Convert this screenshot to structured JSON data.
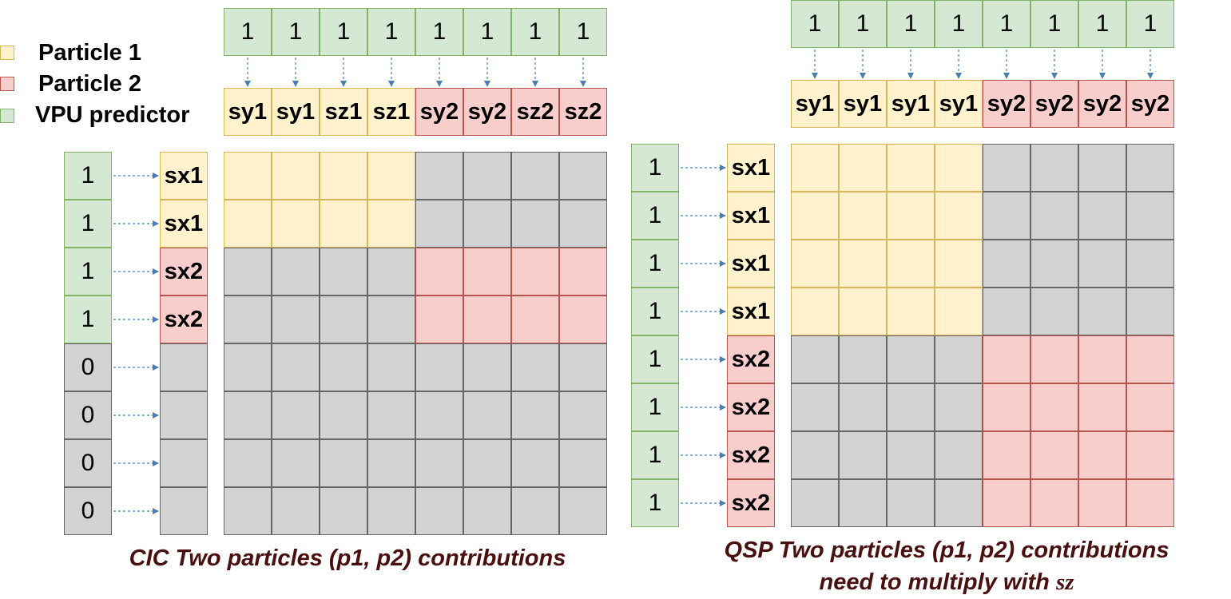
{
  "legend": [
    {
      "label": "Particle 1",
      "color": "#fff2cc",
      "border": "#d6b656"
    },
    {
      "label": "Particle 2",
      "color": "#f8cecc",
      "border": "#b85450"
    },
    {
      "label": "VPU predictor",
      "color": "#d5e8d4",
      "border": "#82b366"
    }
  ],
  "colors": {
    "green": "#d5e8d4",
    "yellow": "#fff2cc",
    "red": "#f8cecc",
    "gray": "#d3d3d3",
    "arrow": "#4a7eb0",
    "caption": "#4a0f0f"
  },
  "cic": {
    "top_predictor": [
      "1",
      "1",
      "1",
      "1",
      "1",
      "1",
      "1",
      "1"
    ],
    "top_labels": [
      "sy1",
      "sy1",
      "sz1",
      "sz1",
      "sy2",
      "sy2",
      "sz2",
      "sz2"
    ],
    "top_particles": [
      1,
      1,
      1,
      1,
      2,
      2,
      2,
      2
    ],
    "left_predictor": [
      "1",
      "1",
      "1",
      "1",
      "0",
      "0",
      "0",
      "0"
    ],
    "left_labels": [
      "sx1",
      "sx1",
      "sx2",
      "sx2",
      "",
      "",
      "",
      ""
    ],
    "left_particles": [
      1,
      1,
      2,
      2,
      0,
      0,
      0,
      0
    ],
    "caption": "CIC Two particles (p1, p2) contributions"
  },
  "qsp": {
    "top_predictor": [
      "1",
      "1",
      "1",
      "1",
      "1",
      "1",
      "1",
      "1"
    ],
    "top_labels": [
      "sy1",
      "sy1",
      "sy1",
      "sy1",
      "sy2",
      "sy2",
      "sy2",
      "sy2"
    ],
    "top_particles": [
      1,
      1,
      1,
      1,
      2,
      2,
      2,
      2
    ],
    "left_predictor": [
      "1",
      "1",
      "1",
      "1",
      "1",
      "1",
      "1",
      "1"
    ],
    "left_labels": [
      "sx1",
      "sx1",
      "sx1",
      "sx1",
      "sx2",
      "sx2",
      "sx2",
      "sx2"
    ],
    "left_particles": [
      1,
      1,
      1,
      1,
      2,
      2,
      2,
      2
    ],
    "caption_line1": "QSP Two particles (p1, p2) contributions",
    "caption_line2_prefix": "need to multiply with ",
    "caption_line2_math": "sz"
  }
}
